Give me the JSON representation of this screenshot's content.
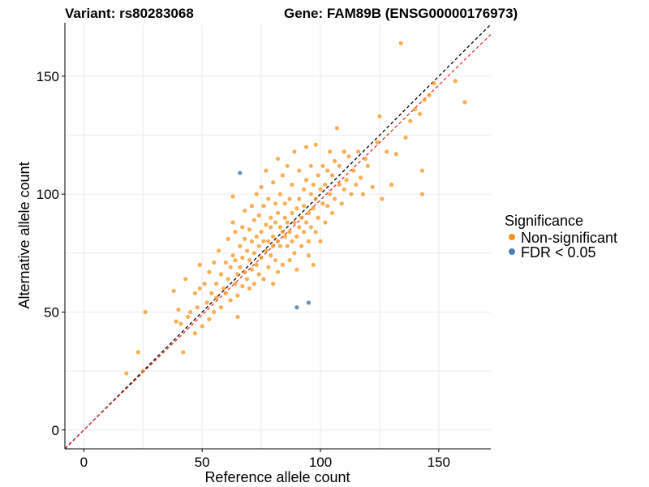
{
  "title_left": "Variant: rs80283068",
  "title_right": "Gene: FAM89B (ENSG00000176973)",
  "chart_data": {
    "type": "scatter",
    "xlabel": "Reference allele count",
    "ylabel": "Alternative allele count",
    "xlim": [
      -8,
      172
    ],
    "ylim": [
      -8,
      172
    ],
    "xticks": [
      0,
      50,
      100,
      150
    ],
    "yticks": [
      0,
      50,
      100,
      150
    ],
    "grid": true,
    "legend": {
      "title": "Significance",
      "position": "right",
      "entries": [
        {
          "label": "Non-significant",
          "color": "#F7941D"
        },
        {
          "label": "FDR < 0.05",
          "color": "#4A7FB5"
        }
      ]
    },
    "reference_lines": [
      {
        "type": "identity",
        "slope": 1,
        "intercept": 0,
        "style": "dashed",
        "color": "#000000"
      },
      {
        "type": "fit",
        "slope": 0.975,
        "intercept": 0,
        "style": "dashed",
        "color": "#E8312F"
      }
    ],
    "series": [
      {
        "name": "Non-significant",
        "color": "#F7941D",
        "points": [
          [
            18,
            24
          ],
          [
            23,
            33
          ],
          [
            25,
            25
          ],
          [
            26,
            50
          ],
          [
            38,
            59
          ],
          [
            39,
            46
          ],
          [
            40,
            51
          ],
          [
            41,
            45
          ],
          [
            42,
            33
          ],
          [
            43,
            64
          ],
          [
            44,
            48
          ],
          [
            45,
            50
          ],
          [
            47,
            41
          ],
          [
            47,
            58
          ],
          [
            48,
            52
          ],
          [
            49,
            60
          ],
          [
            49,
            70
          ],
          [
            50,
            44
          ],
          [
            51,
            62
          ],
          [
            52,
            54
          ],
          [
            53,
            47
          ],
          [
            53,
            67
          ],
          [
            54,
            58
          ],
          [
            55,
            50
          ],
          [
            55,
            71
          ],
          [
            56,
            62
          ],
          [
            56,
            56
          ],
          [
            57,
            76
          ],
          [
            58,
            52
          ],
          [
            58,
            66
          ],
          [
            59,
            60
          ],
          [
            60,
            71
          ],
          [
            60,
            58
          ],
          [
            61,
            64
          ],
          [
            61,
            81
          ],
          [
            62,
            55
          ],
          [
            62,
            69
          ],
          [
            63,
            74
          ],
          [
            63,
            88
          ],
          [
            63,
            99
          ],
          [
            64,
            62
          ],
          [
            64,
            72
          ],
          [
            64,
            84
          ],
          [
            65,
            66
          ],
          [
            65,
            48
          ],
          [
            65,
            57
          ],
          [
            66,
            78
          ],
          [
            66,
            69
          ],
          [
            67,
            86
          ],
          [
            67,
            61
          ],
          [
            67,
            73
          ],
          [
            68,
            81
          ],
          [
            68,
            93
          ],
          [
            68,
            67
          ],
          [
            69,
            64
          ],
          [
            69,
            76
          ],
          [
            70,
            85
          ],
          [
            70,
            72
          ],
          [
            70,
            60
          ],
          [
            71,
            80
          ],
          [
            71,
            95
          ],
          [
            71,
            68
          ],
          [
            72,
            75
          ],
          [
            72,
            89
          ],
          [
            72,
            62
          ],
          [
            73,
            82
          ],
          [
            73,
            70
          ],
          [
            73,
            100
          ],
          [
            74,
            78
          ],
          [
            74,
            91
          ],
          [
            74,
            66
          ],
          [
            75,
            84
          ],
          [
            75,
            73
          ],
          [
            75,
            103
          ],
          [
            76,
            80
          ],
          [
            76,
            95
          ],
          [
            76,
            64
          ],
          [
            77,
            87
          ],
          [
            77,
            76
          ],
          [
            77,
            110
          ],
          [
            78,
            80
          ],
          [
            78,
            69
          ],
          [
            78,
            98
          ],
          [
            79,
            86
          ],
          [
            79,
            74
          ],
          [
            79,
            90
          ],
          [
            80,
            82
          ],
          [
            80,
            78
          ],
          [
            80,
            62
          ],
          [
            80,
            105
          ],
          [
            81,
            88
          ],
          [
            81,
            72
          ],
          [
            81,
            96
          ],
          [
            82,
            80
          ],
          [
            82,
            92
          ],
          [
            82,
            67
          ],
          [
            82,
            115
          ],
          [
            83,
            86
          ],
          [
            83,
            78
          ],
          [
            83,
            100
          ],
          [
            84,
            84
          ],
          [
            84,
            70
          ],
          [
            84,
            108
          ],
          [
            85,
            90
          ],
          [
            85,
            82
          ],
          [
            85,
            96
          ],
          [
            86,
            78
          ],
          [
            86,
            88
          ],
          [
            86,
            112
          ],
          [
            87,
            84
          ],
          [
            87,
            72
          ],
          [
            87,
            98
          ],
          [
            88,
            92
          ],
          [
            88,
            80
          ],
          [
            88,
            104
          ],
          [
            89,
            88
          ],
          [
            89,
            75
          ],
          [
            89,
            118
          ],
          [
            90,
            94
          ],
          [
            90,
            82
          ],
          [
            90,
            68
          ],
          [
            91,
            98
          ],
          [
            91,
            86
          ],
          [
            91,
            110
          ],
          [
            92,
            90
          ],
          [
            92,
            78
          ],
          [
            93,
            102
          ],
          [
            93,
            95
          ],
          [
            93,
            84
          ],
          [
            94,
            88
          ],
          [
            94,
            106
          ],
          [
            94,
            120
          ],
          [
            95,
            92
          ],
          [
            95,
            80
          ],
          [
            95,
            74
          ],
          [
            96,
            100
          ],
          [
            96,
            86
          ],
          [
            96,
            112
          ],
          [
            97,
            94
          ],
          [
            97,
            104
          ],
          [
            97,
            70
          ],
          [
            98,
            98
          ],
          [
            98,
            84
          ],
          [
            98,
            121
          ],
          [
            99,
            108
          ],
          [
            99,
            90
          ],
          [
            100,
            102
          ],
          [
            100,
            80
          ],
          [
            101,
            112
          ],
          [
            101,
            96
          ],
          [
            102,
            104
          ],
          [
            102,
            88
          ],
          [
            103,
            110
          ],
          [
            103,
            95
          ],
          [
            104,
            100
          ],
          [
            104,
            118
          ],
          [
            105,
            92
          ],
          [
            105,
            108
          ],
          [
            106,
            114
          ],
          [
            106,
            98
          ],
          [
            107,
            128
          ],
          [
            108,
            104
          ],
          [
            108,
            112
          ],
          [
            109,
            96
          ],
          [
            110,
            118
          ],
          [
            110,
            102
          ],
          [
            111,
            106
          ],
          [
            112,
            116
          ],
          [
            113,
            100
          ],
          [
            114,
            110
          ],
          [
            115,
            104
          ],
          [
            116,
            118
          ],
          [
            117,
            107
          ],
          [
            118,
            100
          ],
          [
            119,
            115
          ],
          [
            120,
            112
          ],
          [
            122,
            103
          ],
          [
            124,
            122
          ],
          [
            125,
            133
          ],
          [
            126,
            98
          ],
          [
            128,
            118
          ],
          [
            130,
            104
          ],
          [
            132,
            117
          ],
          [
            134,
            164
          ],
          [
            136,
            124
          ],
          [
            138,
            131
          ],
          [
            140,
            136
          ],
          [
            142,
            134
          ],
          [
            143,
            100
          ],
          [
            143,
            110
          ],
          [
            144,
            140
          ],
          [
            146,
            142
          ],
          [
            148,
            147
          ],
          [
            157,
            148
          ],
          [
            161,
            139
          ]
        ]
      },
      {
        "name": "FDR < 0.05",
        "color": "#4A7FB5",
        "points": [
          [
            66,
            109
          ],
          [
            90,
            52
          ],
          [
            95,
            54
          ]
        ]
      }
    ]
  }
}
